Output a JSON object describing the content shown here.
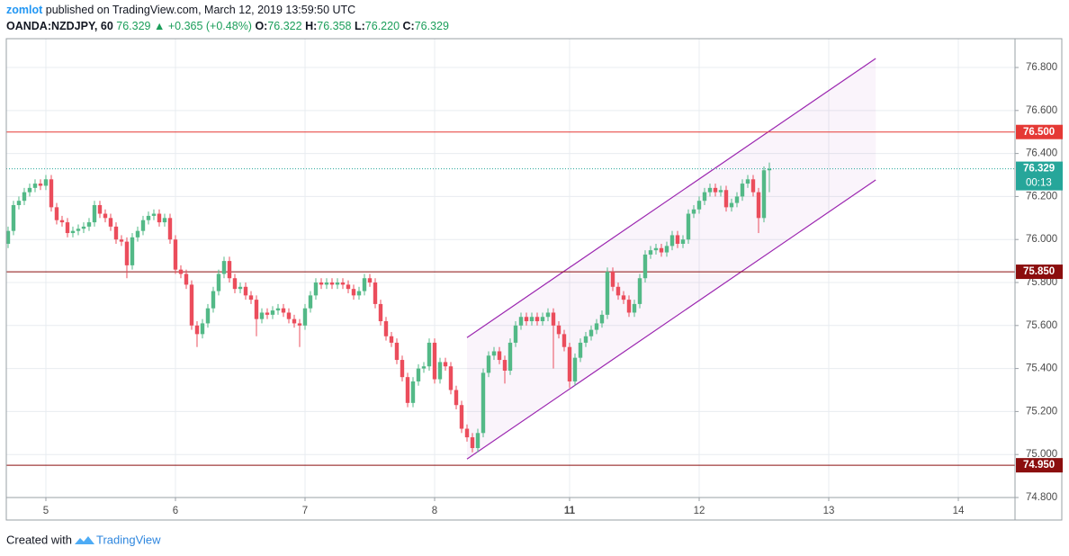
{
  "header": {
    "author": "zomlot",
    "published": "published on TradingView.com, March 12, 2019 13:59:50 UTC",
    "symbol": "OANDA:NZDJPY, 60",
    "last": "76.329",
    "arrow": "▲",
    "change": "+0.365 (+0.48%)",
    "ohlc": [
      {
        "key": "O:",
        "value": "76.322"
      },
      {
        "key": "H:",
        "value": "76.358"
      },
      {
        "key": "L:",
        "value": "76.220"
      },
      {
        "key": "C:",
        "value": "76.329"
      }
    ]
  },
  "footer": {
    "created": "Created with",
    "brand": "TradingView"
  },
  "chart_data": {
    "type": "candlestick",
    "up_color": "#53b987",
    "down_color": "#eb4d5c",
    "grid": true,
    "xlim": [
      -0.33,
      186.5
    ],
    "xticks": [
      {
        "value": 7,
        "label": "5"
      },
      {
        "value": 31,
        "label": "6"
      },
      {
        "value": 55,
        "label": "7"
      },
      {
        "value": 79,
        "label": "8"
      },
      {
        "value": 104,
        "label": "11"
      },
      {
        "value": 128,
        "label": "12"
      },
      {
        "value": 152,
        "label": "13"
      },
      {
        "value": 176,
        "label": "14"
      }
    ],
    "ylim": [
      74.8,
      76.934
    ],
    "yticks": [
      {
        "value": 74.8,
        "label": "74.800"
      },
      {
        "value": 75.0,
        "label": "75.000"
      },
      {
        "value": 75.2,
        "label": "75.200"
      },
      {
        "value": 75.4,
        "label": "75.400"
      },
      {
        "value": 75.6,
        "label": "75.600"
      },
      {
        "value": 75.8,
        "label": "75.800"
      },
      {
        "value": 76.0,
        "label": "76.000"
      },
      {
        "value": 76.2,
        "label": "76.200"
      },
      {
        "value": 76.4,
        "label": "76.400"
      },
      {
        "value": 76.6,
        "label": "76.600"
      },
      {
        "value": 76.8,
        "label": "76.800"
      }
    ],
    "open": [
      75.98,
      76.04,
      76.16,
      76.18,
      76.22,
      76.24,
      76.26,
      76.25,
      76.28,
      76.15,
      76.09,
      76.08,
      76.03,
      76.04,
      76.05,
      76.06,
      76.08,
      76.16,
      76.12,
      76.1,
      76.06,
      76.0,
      75.99,
      75.88,
      76.01,
      76.04,
      76.09,
      76.11,
      76.12,
      76.08,
      76.1,
      76.0,
      75.86,
      75.84,
      75.79,
      75.6,
      75.56,
      75.61,
      75.68,
      75.76,
      75.84,
      75.9,
      75.82,
      75.77,
      75.78,
      75.74,
      75.72,
      75.63,
      75.66,
      75.65,
      75.67,
      75.68,
      75.66,
      75.63,
      75.61,
      75.6,
      75.68,
      75.74,
      75.8,
      75.79,
      75.8,
      75.79,
      75.8,
      75.79,
      75.77,
      75.74,
      75.76,
      75.82,
      75.8,
      75.7,
      75.62,
      75.55,
      75.52,
      75.44,
      75.36,
      75.24,
      75.34,
      75.4,
      75.41,
      75.52,
      75.35,
      75.43,
      75.41,
      75.3,
      75.23,
      75.12,
      75.08,
      75.03,
      75.1,
      75.38,
      75.46,
      75.48,
      75.44,
      75.39,
      75.52,
      75.6,
      75.64,
      75.62,
      75.64,
      75.62,
      75.64,
      75.66,
      75.6,
      75.56,
      75.5,
      75.34,
      75.45,
      75.52,
      75.55,
      75.58,
      75.61,
      75.65,
      75.85,
      75.78,
      75.74,
      75.72,
      75.66,
      75.7,
      75.82,
      75.93,
      75.95,
      75.96,
      75.94,
      75.97,
      76.02,
      75.98,
      76.0,
      76.12,
      76.14,
      76.18,
      76.22,
      76.24,
      76.22,
      76.23,
      76.15,
      76.17,
      76.2,
      76.26,
      76.28,
      76.22,
      76.1,
      76.322
    ],
    "high": [
      76.06,
      76.18,
      76.2,
      76.24,
      76.26,
      76.28,
      76.28,
      76.3,
      76.3,
      76.17,
      76.11,
      76.1,
      76.06,
      76.07,
      76.08,
      76.1,
      76.18,
      76.18,
      76.14,
      76.12,
      76.08,
      76.02,
      76.01,
      76.03,
      76.06,
      76.11,
      76.13,
      76.14,
      76.14,
      76.12,
      76.12,
      76.02,
      75.88,
      75.86,
      75.81,
      75.62,
      75.63,
      75.7,
      75.78,
      75.86,
      75.92,
      75.92,
      75.84,
      75.8,
      75.8,
      75.76,
      75.74,
      75.68,
      75.68,
      75.69,
      75.7,
      75.7,
      75.68,
      75.65,
      75.63,
      75.7,
      75.76,
      75.82,
      75.82,
      75.82,
      75.82,
      75.82,
      75.82,
      75.81,
      75.79,
      75.78,
      75.84,
      75.84,
      75.82,
      75.72,
      75.64,
      75.57,
      75.54,
      75.46,
      75.38,
      75.36,
      75.42,
      75.43,
      75.54,
      75.54,
      75.45,
      75.45,
      75.43,
      75.32,
      75.25,
      75.14,
      75.1,
      75.12,
      75.4,
      75.48,
      75.5,
      75.5,
      75.46,
      75.54,
      75.62,
      75.66,
      75.66,
      75.66,
      75.66,
      75.66,
      75.68,
      75.68,
      75.62,
      75.58,
      75.52,
      75.47,
      75.54,
      75.57,
      75.6,
      75.63,
      75.67,
      75.87,
      75.87,
      75.8,
      75.76,
      75.74,
      75.72,
      75.84,
      75.95,
      75.97,
      75.98,
      75.98,
      75.99,
      76.04,
      76.04,
      76.02,
      76.14,
      76.16,
      76.2,
      76.24,
      76.26,
      76.26,
      76.25,
      76.25,
      76.19,
      76.22,
      76.28,
      76.3,
      76.3,
      76.24,
      76.34,
      76.358
    ],
    "low": [
      75.96,
      76.02,
      76.14,
      76.16,
      76.2,
      76.22,
      76.23,
      76.23,
      76.13,
      76.07,
      76.06,
      76.01,
      76.01,
      76.02,
      76.03,
      76.04,
      76.06,
      76.1,
      76.08,
      76.04,
      75.98,
      75.97,
      75.82,
      75.86,
      75.99,
      76.02,
      76.07,
      76.09,
      76.06,
      76.06,
      75.98,
      75.84,
      75.82,
      75.77,
      75.58,
      75.5,
      75.54,
      75.59,
      75.66,
      75.74,
      75.82,
      75.8,
      75.75,
      75.75,
      75.72,
      75.7,
      75.55,
      75.61,
      75.63,
      75.63,
      75.65,
      75.64,
      75.61,
      75.59,
      75.5,
      75.58,
      75.66,
      75.72,
      75.77,
      75.77,
      75.77,
      75.77,
      75.77,
      75.75,
      75.72,
      75.72,
      75.74,
      75.78,
      75.68,
      75.6,
      75.53,
      75.5,
      75.42,
      75.34,
      75.22,
      75.22,
      75.32,
      75.38,
      75.39,
      75.33,
      75.33,
      75.39,
      75.28,
      75.21,
      75.1,
      75.06,
      75.01,
      75.01,
      75.08,
      75.36,
      75.44,
      75.42,
      75.33,
      75.37,
      75.5,
      75.58,
      75.6,
      75.6,
      75.6,
      75.6,
      75.62,
      75.4,
      75.54,
      75.48,
      75.31,
      75.32,
      75.43,
      75.5,
      75.53,
      75.56,
      75.59,
      75.63,
      75.76,
      75.72,
      75.7,
      75.64,
      75.64,
      75.68,
      75.8,
      75.91,
      75.93,
      75.92,
      75.92,
      75.95,
      75.96,
      75.96,
      75.98,
      76.1,
      76.12,
      76.16,
      76.2,
      76.2,
      76.2,
      76.13,
      76.13,
      76.15,
      76.18,
      76.24,
      76.2,
      76.03,
      76.08,
      76.22
    ],
    "close": [
      76.04,
      76.16,
      76.18,
      76.22,
      76.24,
      76.26,
      76.25,
      76.28,
      76.15,
      76.09,
      76.08,
      76.03,
      76.04,
      76.05,
      76.06,
      76.08,
      76.16,
      76.12,
      76.1,
      76.06,
      76.0,
      75.99,
      75.88,
      76.01,
      76.04,
      76.09,
      76.11,
      76.12,
      76.08,
      76.1,
      76.0,
      75.86,
      75.84,
      75.79,
      75.6,
      75.56,
      75.61,
      75.68,
      75.76,
      75.84,
      75.9,
      75.82,
      75.77,
      75.78,
      75.74,
      75.72,
      75.63,
      75.66,
      75.65,
      75.67,
      75.68,
      75.66,
      75.63,
      75.61,
      75.6,
      75.68,
      75.74,
      75.8,
      75.79,
      75.8,
      75.79,
      75.8,
      75.79,
      75.77,
      75.74,
      75.76,
      75.82,
      75.8,
      75.7,
      75.62,
      75.55,
      75.52,
      75.44,
      75.36,
      75.24,
      75.34,
      75.4,
      75.41,
      75.52,
      75.35,
      75.43,
      75.41,
      75.3,
      75.23,
      75.12,
      75.08,
      75.03,
      75.1,
      75.38,
      75.46,
      75.48,
      75.44,
      75.39,
      75.52,
      75.6,
      75.64,
      75.62,
      75.64,
      75.62,
      75.64,
      75.66,
      75.6,
      75.56,
      75.5,
      75.34,
      75.45,
      75.52,
      75.55,
      75.58,
      75.61,
      75.65,
      75.85,
      75.78,
      75.74,
      75.72,
      75.66,
      75.7,
      75.82,
      75.93,
      75.95,
      75.96,
      75.94,
      75.97,
      76.02,
      75.98,
      76.0,
      76.12,
      76.14,
      76.18,
      76.22,
      76.24,
      76.22,
      76.23,
      76.15,
      76.17,
      76.2,
      76.26,
      76.28,
      76.22,
      76.1,
      76.322,
      76.329
    ],
    "hlines": [
      {
        "value": 76.5,
        "label": "76.500",
        "color": "#e53935"
      },
      {
        "value": 75.85,
        "label": "75.850",
        "color": "#8b0e0e"
      },
      {
        "value": 74.95,
        "label": "74.950",
        "color": "#8b0e0e"
      }
    ],
    "last_price": {
      "value": 76.329,
      "label": "76.329",
      "countdown": "00:13",
      "color": "#26a69a"
    },
    "channel": {
      "color": "#9c27b0",
      "upper": [
        [
          85,
          75.544
        ],
        [
          160.7,
          76.842
        ]
      ],
      "lower": [
        [
          85,
          74.979
        ],
        [
          160.7,
          76.277
        ]
      ]
    }
  }
}
